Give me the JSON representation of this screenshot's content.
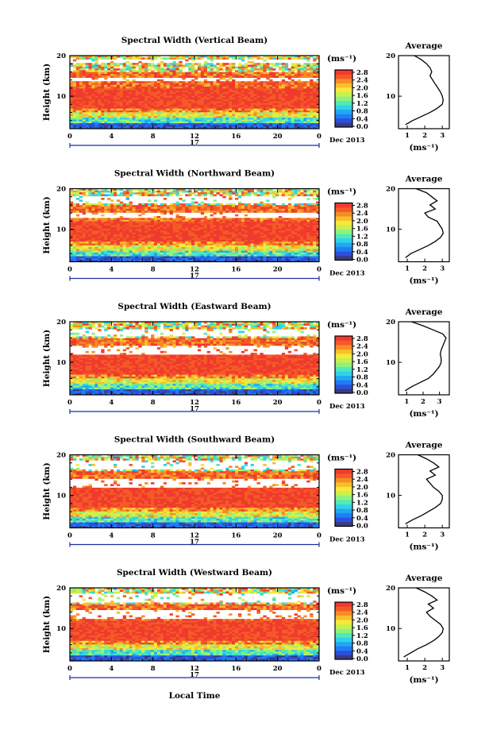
{
  "figure": {
    "xlabel": "Local Time",
    "ylabel": "Height (km)",
    "day_label": "17",
    "month_label": "Dec 2013",
    "colorbar_unit": "(ms⁻¹)",
    "avg_title": "Average",
    "avg_xlabel": "(ms⁻¹)"
  },
  "chart_data": [
    {
      "type": "heatmap",
      "title": "Spectral Width (Vertical Beam)",
      "x_ticks": [
        "0",
        "4",
        "8",
        "12",
        "16",
        "20",
        "0"
      ],
      "y_ticks": [
        "20",
        "10"
      ],
      "ylim": [
        2,
        20
      ],
      "xlim": [
        0,
        24
      ],
      "colorbar": {
        "ticks": [
          "2.8",
          "2.4",
          "2.0",
          "1.6",
          "1.2",
          "0.8",
          "0.4",
          "0.0"
        ],
        "range": [
          0,
          3.0
        ]
      },
      "profile": {
        "title": "Average",
        "x_ticks": [
          "1",
          "2",
          "3"
        ],
        "y_ticks": [
          "20",
          "10"
        ],
        "xlim": [
          0.5,
          3.4
        ],
        "ylim": [
          2,
          20
        ],
        "height": [
          3,
          4,
          5,
          6,
          7,
          8,
          9,
          10,
          11,
          12,
          13,
          14,
          15,
          16,
          17,
          18,
          19,
          20
        ],
        "width": [
          0.9,
          1.3,
          1.8,
          2.3,
          2.7,
          3.0,
          3.05,
          3.0,
          2.9,
          2.75,
          2.6,
          2.45,
          2.3,
          2.4,
          2.3,
          2.1,
          1.8,
          1.4
        ]
      }
    },
    {
      "type": "heatmap",
      "title": "Spectral Width (Northward Beam)",
      "x_ticks": [
        "0",
        "4",
        "8",
        "12",
        "16",
        "20",
        "0"
      ],
      "y_ticks": [
        "20",
        "10"
      ],
      "ylim": [
        2,
        20
      ],
      "xlim": [
        0,
        24
      ],
      "colorbar": {
        "ticks": [
          "2.8",
          "2.4",
          "2.0",
          "1.6",
          "1.2",
          "0.8",
          "0.4",
          "0.0"
        ],
        "range": [
          0,
          3.0
        ]
      },
      "profile": {
        "title": "Average",
        "x_ticks": [
          "1",
          "2",
          "3"
        ],
        "y_ticks": [
          "20",
          "10"
        ],
        "xlim": [
          0.5,
          3.4
        ],
        "ylim": [
          2,
          20
        ],
        "height": [
          3,
          4,
          5,
          6,
          7,
          8,
          9,
          10,
          11,
          12,
          13,
          14,
          15,
          16,
          17,
          18,
          19,
          20
        ],
        "width": [
          0.9,
          1.2,
          1.7,
          2.2,
          2.6,
          2.9,
          3.05,
          3.0,
          2.85,
          2.7,
          2.2,
          2.0,
          2.6,
          2.3,
          2.7,
          2.4,
          2.1,
          1.5
        ]
      }
    },
    {
      "type": "heatmap",
      "title": "Spectral Width (Eastward Beam)",
      "x_ticks": [
        "0",
        "4",
        "8",
        "12",
        "16",
        "20",
        "0"
      ],
      "y_ticks": [
        "20",
        "10"
      ],
      "ylim": [
        2,
        20
      ],
      "xlim": [
        0,
        24
      ],
      "colorbar": {
        "ticks": [
          "2.8",
          "2.4",
          "2.0",
          "1.6",
          "1.2",
          "0.8",
          "0.4",
          "0.0"
        ],
        "range": [
          0,
          3.0
        ]
      },
      "profile": {
        "title": "Average",
        "x_ticks": [
          "1",
          "2",
          "3"
        ],
        "y_ticks": [
          "20",
          "10"
        ],
        "xlim": [
          0.5,
          3.6
        ],
        "ylim": [
          2,
          20
        ],
        "height": [
          3,
          4,
          5,
          6,
          7,
          8,
          9,
          10,
          11,
          12,
          13,
          14,
          15,
          16,
          17,
          18,
          19,
          20
        ],
        "width": [
          0.9,
          1.3,
          1.8,
          2.3,
          2.6,
          2.8,
          3.0,
          3.1,
          3.1,
          3.05,
          3.1,
          3.2,
          3.3,
          3.4,
          3.2,
          2.6,
          2.0,
          1.3
        ]
      }
    },
    {
      "type": "heatmap",
      "title": "Spectral Width (Southward Beam)",
      "x_ticks": [
        "0",
        "4",
        "8",
        "12",
        "16",
        "20",
        "0"
      ],
      "y_ticks": [
        "20",
        "10"
      ],
      "ylim": [
        2,
        20
      ],
      "xlim": [
        0,
        24
      ],
      "colorbar": {
        "ticks": [
          "2.8",
          "2.4",
          "2.0",
          "1.6",
          "1.2",
          "0.8",
          "0.4",
          "0.0"
        ],
        "range": [
          0,
          3.0
        ]
      },
      "profile": {
        "title": "Average",
        "x_ticks": [
          "1",
          "2",
          "3"
        ],
        "y_ticks": [
          "20",
          "10"
        ],
        "xlim": [
          0.5,
          3.4
        ],
        "ylim": [
          2,
          20
        ],
        "height": [
          3,
          4,
          5,
          6,
          7,
          8,
          9,
          10,
          11,
          12,
          13,
          14,
          15,
          16,
          17,
          18,
          19,
          20
        ],
        "width": [
          0.9,
          1.3,
          1.8,
          2.2,
          2.6,
          2.9,
          3.0,
          3.0,
          2.8,
          2.5,
          2.3,
          2.1,
          2.6,
          2.3,
          2.8,
          2.5,
          2.1,
          1.6
        ]
      }
    },
    {
      "type": "heatmap",
      "title": "Spectral Width (Westward Beam)",
      "x_ticks": [
        "0",
        "4",
        "8",
        "12",
        "16",
        "20",
        "0"
      ],
      "y_ticks": [
        "20",
        "10"
      ],
      "ylim": [
        2,
        20
      ],
      "xlim": [
        0,
        24
      ],
      "colorbar": {
        "ticks": [
          "2.8",
          "2.4",
          "2.0",
          "1.6",
          "1.2",
          "0.8",
          "0.4",
          "0.0"
        ],
        "range": [
          0,
          3.0
        ]
      },
      "profile": {
        "title": "Average",
        "x_ticks": [
          "1",
          "2",
          "3"
        ],
        "y_ticks": [
          "20",
          "10"
        ],
        "xlim": [
          0.5,
          3.4
        ],
        "ylim": [
          2,
          20
        ],
        "height": [
          3,
          4,
          5,
          6,
          7,
          8,
          9,
          10,
          11,
          12,
          13,
          14,
          15,
          16,
          17,
          18,
          19,
          20
        ],
        "width": [
          0.8,
          1.2,
          1.6,
          2.1,
          2.5,
          2.8,
          3.0,
          3.05,
          2.9,
          2.6,
          2.3,
          2.1,
          2.5,
          2.2,
          2.7,
          2.4,
          2.0,
          1.5
        ]
      }
    }
  ]
}
